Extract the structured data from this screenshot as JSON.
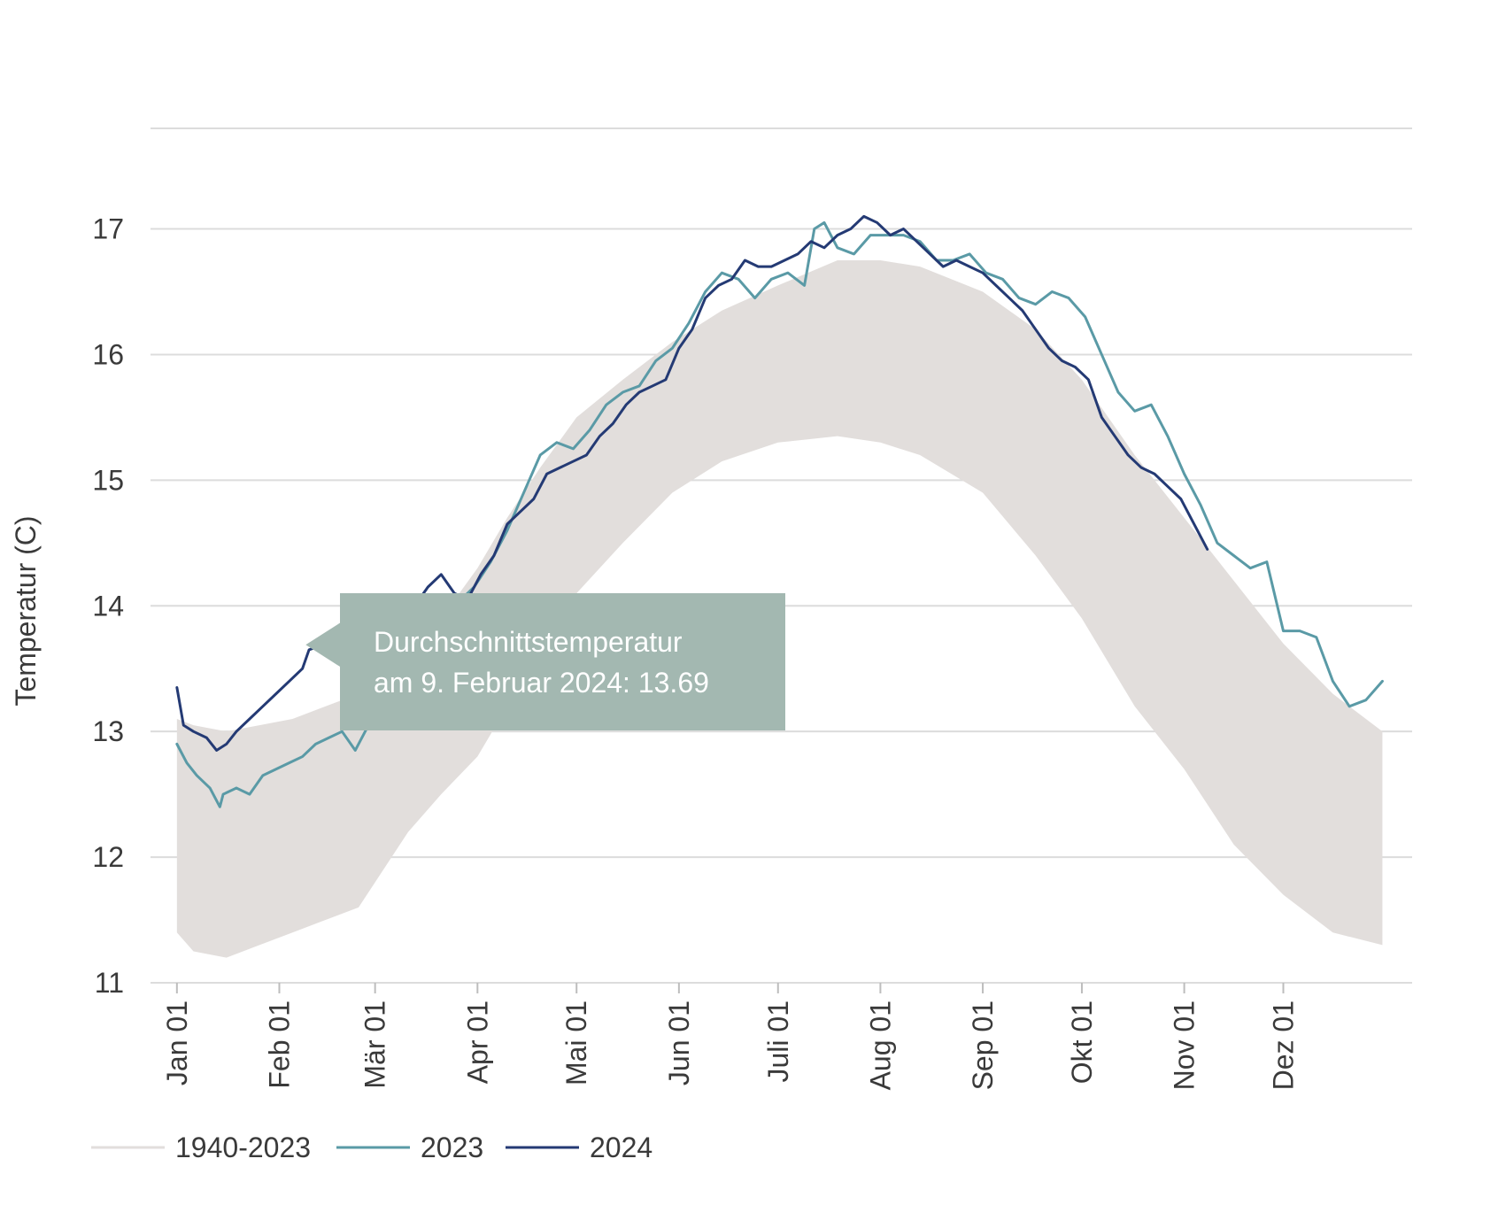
{
  "chart_data": {
    "type": "line",
    "ylabel": "Temperatur (C)",
    "xlabel": "",
    "ylim": [
      11,
      17.8
    ],
    "yticks": [
      11,
      12,
      13,
      14,
      15,
      16,
      17
    ],
    "grid": true,
    "x_tick_labels": [
      "Jan 01",
      "Feb 01",
      "Mär 01",
      "Apr 01",
      "Mai 01",
      "Jun 01",
      "Juli 01",
      "Aug 01",
      "Sep 01",
      "Okt 01",
      "Nov 01",
      "Dez 01"
    ],
    "x_tick_days": [
      0,
      31,
      60,
      91,
      121,
      152,
      182,
      213,
      244,
      274,
      305,
      335
    ],
    "x_domain_days": [
      -8,
      374
    ],
    "band": {
      "name": "1940-2023",
      "color": "#e2dedc",
      "days": [
        0,
        5,
        15,
        25,
        35,
        45,
        55,
        60,
        70,
        80,
        91,
        100,
        110,
        121,
        135,
        150,
        165,
        182,
        200,
        213,
        225,
        244,
        260,
        274,
        290,
        305,
        320,
        335,
        350,
        365
      ],
      "upper": [
        13.1,
        13.05,
        13.0,
        13.05,
        13.1,
        13.2,
        13.3,
        13.4,
        13.6,
        13.9,
        14.3,
        14.7,
        15.1,
        15.5,
        15.8,
        16.1,
        16.35,
        16.55,
        16.75,
        16.75,
        16.7,
        16.5,
        16.2,
        15.8,
        15.2,
        14.7,
        14.2,
        13.7,
        13.3,
        13.0
      ],
      "lower": [
        11.4,
        11.25,
        11.2,
        11.3,
        11.4,
        11.5,
        11.6,
        11.8,
        12.2,
        12.5,
        12.8,
        13.2,
        13.6,
        14.1,
        14.5,
        14.9,
        15.15,
        15.3,
        15.35,
        15.3,
        15.2,
        14.9,
        14.4,
        13.9,
        13.2,
        12.7,
        12.1,
        11.7,
        11.4,
        11.3
      ]
    },
    "series": [
      {
        "name": "2023",
        "color": "#5a9aa6",
        "x": [
          0,
          3,
          6,
          10,
          13,
          14,
          18,
          22,
          26,
          30,
          34,
          38,
          42,
          46,
          50,
          54,
          58,
          62,
          66,
          70,
          74,
          78,
          82,
          86,
          90,
          95,
          100,
          105,
          110,
          115,
          120,
          125,
          130,
          135,
          140,
          145,
          150,
          155,
          160,
          165,
          170,
          175,
          180,
          185,
          190,
          193,
          196,
          200,
          205,
          210,
          215,
          220,
          225,
          230,
          235,
          240,
          245,
          250,
          255,
          260,
          265,
          270,
          275,
          280,
          285,
          290,
          295,
          300,
          305,
          310,
          315,
          320,
          325,
          330,
          335,
          340,
          345,
          350,
          355,
          360,
          365
        ],
        "y": [
          12.9,
          12.75,
          12.65,
          12.55,
          12.4,
          12.5,
          12.55,
          12.5,
          12.65,
          12.7,
          12.75,
          12.8,
          12.9,
          12.95,
          13.0,
          12.85,
          13.05,
          13.3,
          13.5,
          13.75,
          13.85,
          13.95,
          14.0,
          14.05,
          14.15,
          14.35,
          14.6,
          14.9,
          15.2,
          15.3,
          15.25,
          15.4,
          15.6,
          15.7,
          15.75,
          15.95,
          16.05,
          16.25,
          16.5,
          16.65,
          16.6,
          16.45,
          16.6,
          16.65,
          16.55,
          17.0,
          17.05,
          16.85,
          16.8,
          16.95,
          16.95,
          16.95,
          16.9,
          16.75,
          16.75,
          16.8,
          16.65,
          16.6,
          16.45,
          16.4,
          16.5,
          16.45,
          16.3,
          16.0,
          15.7,
          15.55,
          15.6,
          15.35,
          15.05,
          14.8,
          14.5,
          14.4,
          14.3,
          14.35,
          13.8,
          13.8,
          13.75,
          13.4,
          13.2,
          13.25,
          13.4
        ]
      },
      {
        "name": "2024",
        "color": "#243a74",
        "x": [
          0,
          2,
          5,
          9,
          12,
          15,
          18,
          22,
          26,
          30,
          34,
          38,
          40,
          44,
          48,
          52,
          56,
          60,
          64,
          68,
          72,
          76,
          80,
          84,
          88,
          92,
          96,
          100,
          104,
          108,
          112,
          116,
          120,
          124,
          128,
          132,
          136,
          140,
          144,
          148,
          152,
          156,
          160,
          164,
          168,
          172,
          176,
          180,
          184,
          188,
          192,
          196,
          200,
          204,
          208,
          212,
          216,
          220,
          224,
          228,
          232,
          236,
          240,
          244,
          248,
          252,
          256,
          260,
          264,
          268,
          272,
          276,
          280,
          284,
          288,
          292,
          296,
          300,
          304,
          308,
          312
        ],
        "y": [
          13.35,
          13.05,
          13.0,
          12.95,
          12.85,
          12.9,
          13.0,
          13.1,
          13.2,
          13.3,
          13.4,
          13.5,
          13.65,
          13.69,
          13.6,
          13.45,
          13.4,
          13.55,
          13.7,
          13.85,
          14.0,
          14.15,
          14.25,
          14.1,
          14.05,
          14.25,
          14.4,
          14.65,
          14.75,
          14.85,
          15.05,
          15.1,
          15.15,
          15.2,
          15.35,
          15.45,
          15.6,
          15.7,
          15.75,
          15.8,
          16.05,
          16.2,
          16.45,
          16.55,
          16.6,
          16.75,
          16.7,
          16.7,
          16.75,
          16.8,
          16.9,
          16.85,
          16.95,
          17.0,
          17.1,
          17.05,
          16.95,
          17.0,
          16.9,
          16.8,
          16.7,
          16.75,
          16.7,
          16.65,
          16.55,
          16.45,
          16.35,
          16.2,
          16.05,
          15.95,
          15.9,
          15.8,
          15.5,
          15.35,
          15.2,
          15.1,
          15.05,
          14.95,
          14.85,
          14.65,
          14.45
        ]
      }
    ],
    "legend": {
      "placement": "bottom-left",
      "entries": [
        {
          "label": "1940-2023",
          "color": "#e2dedc"
        },
        {
          "label": "2023",
          "color": "#5a9aa6"
        },
        {
          "label": "2024",
          "color": "#243a74"
        }
      ]
    },
    "annotation": {
      "line1": "Durchschnittstemperatur",
      "line2": "am 9. Februar 2024: 13.69",
      "x_day": 39,
      "y": 13.69,
      "bg_color": "#a3b8b1"
    }
  }
}
